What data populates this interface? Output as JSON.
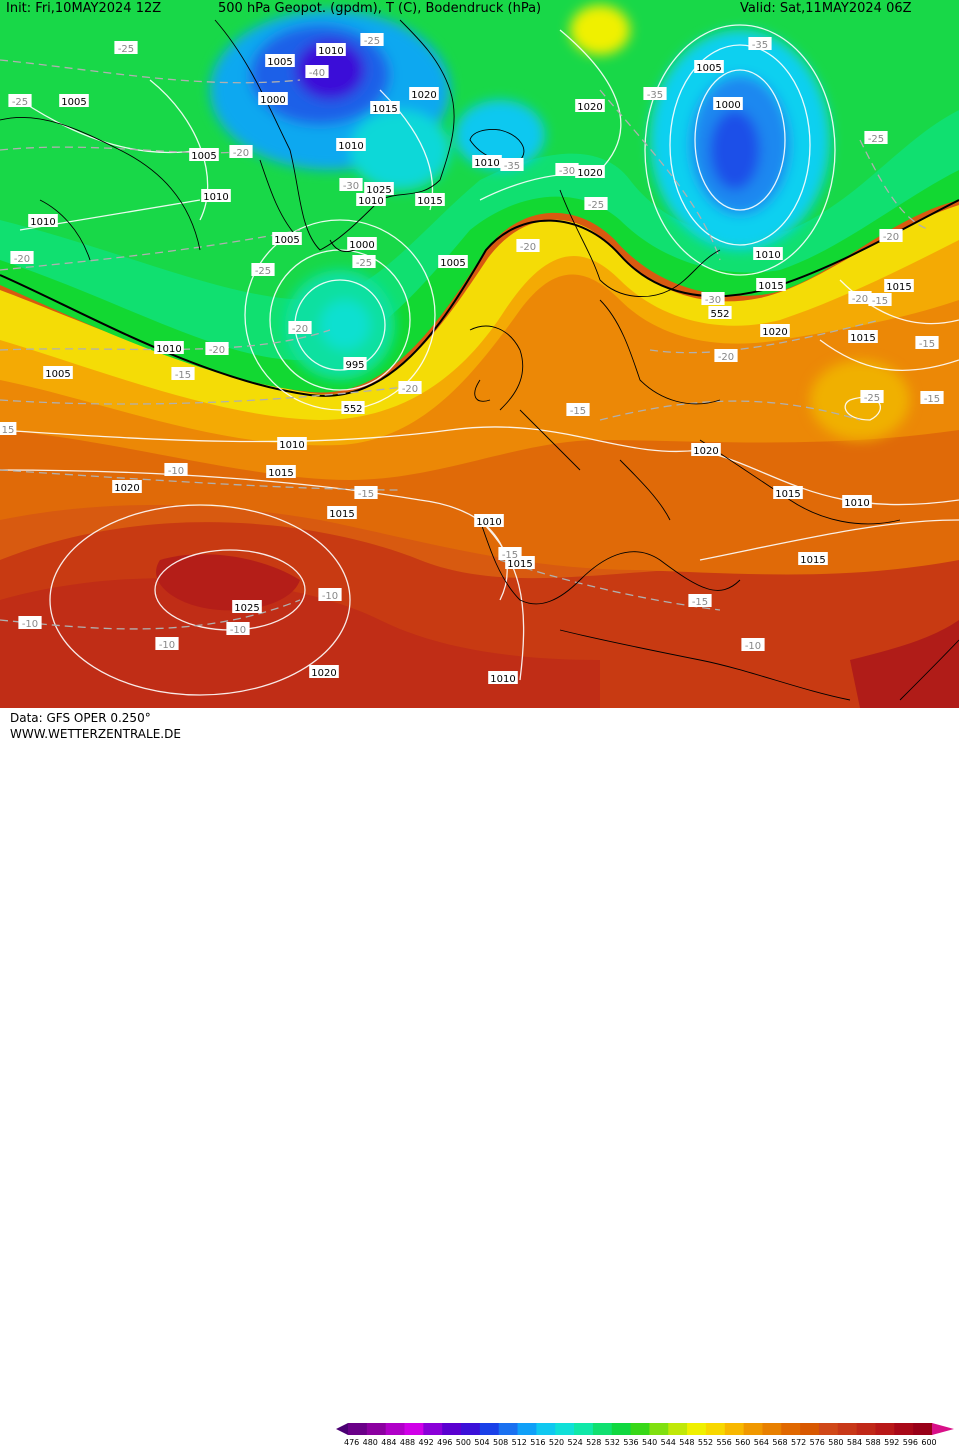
{
  "header": {
    "init": "Init: Fri,10MAY2024 12Z",
    "title": "500 hPa Geopot. (gpdm), T (C), Bodendruck (hPa)",
    "valid": "Valid: Sat,11MAY2024 06Z"
  },
  "footer": {
    "data_source": "Data: GFS OPER 0.250°",
    "website": "WWW.WETTERZENTRALE.DE"
  },
  "colors": {
    "palette": [
      "#4b0073",
      "#6a0088",
      "#8b00a0",
      "#b000c8",
      "#d000e8",
      "#8a00d8",
      "#5a00d0",
      "#3b10d8",
      "#1a40e8",
      "#1a70f0",
      "#10a0f8",
      "#10c8f0",
      "#10e0d8",
      "#10e8a8",
      "#10e070",
      "#10d840",
      "#38d818",
      "#80e010",
      "#c0e808",
      "#f0f000",
      "#f8d800",
      "#f8b800",
      "#f09800",
      "#e88000",
      "#e06800",
      "#d85800",
      "#d04818",
      "#c83818",
      "#c02818",
      "#b81818",
      "#a80818",
      "#980018",
      "#d81088"
    ],
    "contour": "#ffffff",
    "isotherm": "#b0b0b0",
    "coast": "#000000"
  },
  "colorbar": {
    "ticks": [
      "476",
      "480",
      "484",
      "488",
      "492",
      "496",
      "500",
      "504",
      "508",
      "512",
      "516",
      "520",
      "524",
      "528",
      "532",
      "536",
      "540",
      "544",
      "548",
      "552",
      "556",
      "560",
      "564",
      "568",
      "572",
      "576",
      "580",
      "584",
      "588",
      "592",
      "596",
      "600"
    ]
  },
  "map": {
    "pressure_labels": [
      "1010",
      "1005",
      "1000",
      "1005",
      "1010",
      "1020",
      "1015",
      "1010",
      "1020",
      "1025",
      "1010",
      "1015",
      "1005",
      "1010",
      "1000",
      "1005",
      "1020",
      "1005",
      "1000",
      "1010",
      "1005",
      "1010",
      "1015",
      "1010",
      "1005",
      "1010",
      "1015",
      "1020",
      "1015",
      "1020",
      "1015",
      "1025",
      "1020",
      "1015",
      "1010",
      "1015",
      "1010",
      "1015",
      "1010",
      "1020",
      "1015",
      "995"
    ],
    "temp_labels": [
      "-25",
      "-25",
      "-25",
      "-20",
      "-25",
      "-30",
      "-35",
      "-40",
      "-35",
      "-30",
      "-25",
      "-35",
      "-30",
      "-25",
      "-25",
      "-20",
      "-20",
      "-20",
      "-20",
      "-15",
      "-20",
      "-20",
      "-15",
      "-15",
      "-15",
      "-10",
      "-10",
      "-10",
      "-10",
      "-15",
      "-10",
      "-15",
      "-10",
      "-20",
      "-15",
      "-25",
      "15",
      "-20",
      "-15"
    ],
    "geopot_labels": [
      "552",
      "552"
    ]
  }
}
